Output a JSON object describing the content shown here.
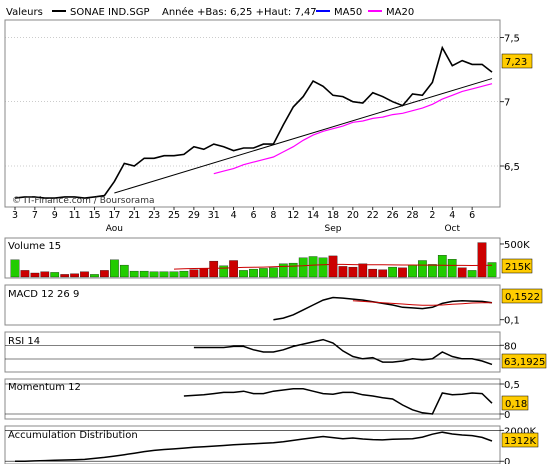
{
  "header": {
    "section_label": "Valeurs",
    "instrument": "SONAE IND.SGP",
    "year_stats": "Année +Bas: 6,25 +Haut: 7,47",
    "ma50_label": "MA50",
    "ma20_label": "MA20"
  },
  "colors": {
    "price": "#000000",
    "trend": "#000000",
    "ma50": "#0000ff",
    "ma20": "#ff00ff",
    "vol_up": "#22cc00",
    "vol_down": "#cc0000",
    "vol_ma": "#cc0000",
    "signal": "#cc0000",
    "badge": "#ffcc00",
    "grid": "#000000"
  },
  "x_axis": {
    "ticks": [
      {
        "label": "3",
        "i": 0
      },
      {
        "label": "7",
        "i": 2
      },
      {
        "label": "9",
        "i": 4
      },
      {
        "label": "11",
        "i": 6
      },
      {
        "label": "15",
        "i": 8
      },
      {
        "label": "17",
        "i": 10
      },
      {
        "label": "21",
        "i": 12
      },
      {
        "label": "23",
        "i": 14
      },
      {
        "label": "25",
        "i": 16
      },
      {
        "label": "29",
        "i": 18
      },
      {
        "label": "31",
        "i": 20
      },
      {
        "label": "4",
        "i": 22
      },
      {
        "label": "6",
        "i": 24
      },
      {
        "label": "8",
        "i": 26
      },
      {
        "label": "12",
        "i": 28
      },
      {
        "label": "14",
        "i": 30
      },
      {
        "label": "18",
        "i": 32
      },
      {
        "label": "20",
        "i": 34
      },
      {
        "label": "22",
        "i": 36
      },
      {
        "label": "26",
        "i": 38
      },
      {
        "label": "28",
        "i": 40
      },
      {
        "label": "2",
        "i": 42
      },
      {
        "label": "4",
        "i": 44
      },
      {
        "label": "6",
        "i": 46
      }
    ],
    "months": [
      {
        "label": "Aou",
        "i": 10
      },
      {
        "label": "Sep",
        "i": 32
      },
      {
        "label": "Oct",
        "i": 44
      }
    ]
  },
  "credit": "© IT-Finance.com / Boursorama",
  "chart_data": [
    {
      "type": "line",
      "panel": "price",
      "y_ticks": [
        {
          "label": "7,5",
          "v": 7.5
        },
        {
          "label": "7",
          "v": 7.0
        },
        {
          "label": "6,5",
          "v": 6.5
        }
      ],
      "ylim": [
        6.22,
        7.62
      ],
      "last_value": "7,23",
      "series": [
        {
          "name": "SONAE IND.SGP",
          "values": [
            6.25,
            6.26,
            6.26,
            6.25,
            6.25,
            6.26,
            6.26,
            6.25,
            6.26,
            6.27,
            6.38,
            6.52,
            6.5,
            6.56,
            6.56,
            6.58,
            6.58,
            6.59,
            6.65,
            6.63,
            6.67,
            6.65,
            6.62,
            6.64,
            6.64,
            6.67,
            6.67,
            6.82,
            6.96,
            7.04,
            7.16,
            7.12,
            7.05,
            7.04,
            7.0,
            6.99,
            7.07,
            7.04,
            7.0,
            6.97,
            7.06,
            7.05,
            7.15,
            7.42,
            7.28,
            7.32,
            7.29,
            7.29,
            7.23
          ]
        },
        {
          "name": "MA20",
          "values": [
            null,
            null,
            null,
            null,
            null,
            null,
            null,
            null,
            null,
            null,
            null,
            null,
            null,
            null,
            null,
            null,
            null,
            null,
            null,
            null,
            6.44,
            6.46,
            6.48,
            6.51,
            6.53,
            6.55,
            6.57,
            6.61,
            6.65,
            6.7,
            6.74,
            6.77,
            6.79,
            6.81,
            6.84,
            6.85,
            6.87,
            6.88,
            6.9,
            6.91,
            6.93,
            6.95,
            6.98,
            7.02,
            7.05,
            7.08,
            7.1,
            7.12,
            7.14
          ]
        }
      ],
      "trendline": {
        "from": [
          10,
          6.29
        ],
        "to": [
          48,
          7.18
        ]
      }
    },
    {
      "type": "bar",
      "panel": "volume",
      "title": "Volume 15",
      "y_ticks": [
        {
          "label": "500K",
          "v": 500
        }
      ],
      "ylim": [
        0,
        560
      ],
      "last_value": "215K",
      "series": [
        {
          "name": "Volume",
          "values": [
            260,
            100,
            60,
            80,
            70,
            40,
            50,
            80,
            40,
            100,
            260,
            180,
            90,
            90,
            80,
            80,
            80,
            90,
            110,
            130,
            240,
            170,
            250,
            100,
            120,
            130,
            140,
            200,
            210,
            290,
            310,
            290,
            320,
            160,
            150,
            200,
            120,
            110,
            150,
            140,
            180,
            250,
            190,
            330,
            270,
            140,
            100,
            520,
            220
          ],
          "up": [
            1,
            0,
            0,
            0,
            1,
            0,
            0,
            0,
            1,
            0,
            1,
            1,
            1,
            1,
            1,
            1,
            1,
            1,
            0,
            0,
            0,
            1,
            0,
            1,
            1,
            1,
            1,
            1,
            1,
            1,
            1,
            1,
            0,
            0,
            0,
            0,
            0,
            0,
            1,
            0,
            1,
            1,
            1,
            1,
            1,
            0,
            1,
            0,
            1
          ]
        },
        {
          "name": "MA15",
          "values": [
            null,
            null,
            null,
            null,
            null,
            null,
            null,
            null,
            null,
            null,
            null,
            null,
            null,
            null,
            null,
            null,
            120,
            125,
            128,
            130,
            132,
            135,
            140,
            145,
            148,
            150,
            155,
            160,
            165,
            170,
            180,
            185,
            190,
            190,
            188,
            186,
            185,
            184,
            183,
            182,
            181,
            180,
            180,
            178,
            176,
            175,
            174,
            176,
            178
          ]
        }
      ]
    },
    {
      "type": "line",
      "panel": "macd",
      "title": "MACD 12 26 9",
      "y_ticks": [
        {
          "label": "0,1",
          "v": 0.1
        }
      ],
      "ylim": [
        0.09,
        0.2
      ],
      "last_value": "0,1522",
      "series": [
        {
          "name": "MACD",
          "values": [
            null,
            null,
            null,
            null,
            null,
            null,
            null,
            null,
            null,
            null,
            null,
            null,
            null,
            null,
            null,
            null,
            null,
            null,
            null,
            null,
            null,
            null,
            null,
            null,
            null,
            null,
            0.1,
            0.105,
            0.115,
            0.13,
            0.145,
            0.16,
            0.168,
            0.166,
            0.163,
            0.16,
            0.155,
            0.15,
            0.145,
            0.138,
            0.136,
            0.134,
            0.138,
            0.15,
            0.156,
            0.158,
            0.157,
            0.156,
            0.152
          ]
        },
        {
          "name": "Signal",
          "values": [
            null,
            null,
            null,
            null,
            null,
            null,
            null,
            null,
            null,
            null,
            null,
            null,
            null,
            null,
            null,
            null,
            null,
            null,
            null,
            null,
            null,
            null,
            null,
            null,
            null,
            null,
            null,
            null,
            null,
            null,
            null,
            null,
            null,
            null,
            0.158,
            0.156,
            0.154,
            0.152,
            0.15,
            0.148,
            0.146,
            0.144,
            0.144,
            0.145,
            0.147,
            0.149,
            0.151,
            0.152,
            0.152
          ]
        }
      ]
    },
    {
      "type": "line",
      "panel": "rsi",
      "title": "RSI 14",
      "y_ticks": [
        {
          "label": "80",
          "v": 80
        }
      ],
      "ylim": [
        58,
        90
      ],
      "last_value": "63,1925",
      "series": [
        {
          "name": "RSI",
          "values": [
            null,
            null,
            null,
            null,
            null,
            null,
            null,
            null,
            null,
            null,
            null,
            null,
            null,
            null,
            null,
            null,
            null,
            null,
            78,
            78,
            78,
            78,
            79,
            79,
            76,
            74,
            74,
            76,
            79,
            81,
            83,
            85,
            82,
            75,
            70,
            68,
            69,
            65,
            65,
            66,
            68,
            67,
            68,
            74,
            70,
            68,
            68,
            66,
            63
          ]
        }
      ]
    },
    {
      "type": "line",
      "panel": "momentum",
      "title": "Momentum 12",
      "y_ticks": [
        {
          "label": "0,5",
          "v": 0.5
        },
        {
          "label": "0",
          "v": 0
        }
      ],
      "ylim": [
        -0.05,
        0.55
      ],
      "last_value": "0,18",
      "series": [
        {
          "name": "Momentum",
          "values": [
            null,
            null,
            null,
            null,
            null,
            null,
            null,
            null,
            null,
            null,
            null,
            null,
            null,
            null,
            null,
            null,
            null,
            0.3,
            0.31,
            0.32,
            0.34,
            0.36,
            0.36,
            0.38,
            0.34,
            0.34,
            0.38,
            0.4,
            0.42,
            0.42,
            0.38,
            0.34,
            0.33,
            0.36,
            0.36,
            0.32,
            0.3,
            0.27,
            0.25,
            0.15,
            0.07,
            0.02,
            0.0,
            0.35,
            0.32,
            0.33,
            0.35,
            0.34,
            0.18
          ]
        }
      ]
    },
    {
      "type": "line",
      "panel": "accdist",
      "title": "Accumulation Distribution",
      "y_ticks": [
        {
          "label": "2000K",
          "v": 2000
        },
        {
          "label": "0",
          "v": 0
        }
      ],
      "ylim": [
        -50,
        2150
      ],
      "last_value": "1312K",
      "series": [
        {
          "name": "Acc/Dist",
          "values": [
            0,
            0,
            20,
            40,
            60,
            80,
            100,
            120,
            180,
            250,
            330,
            420,
            520,
            620,
            700,
            760,
            800,
            850,
            900,
            940,
            980,
            1020,
            1060,
            1100,
            1130,
            1160,
            1200,
            1260,
            1350,
            1440,
            1520,
            1600,
            1530,
            1460,
            1500,
            1440,
            1400,
            1380,
            1420,
            1440,
            1450,
            1560,
            1750,
            1880,
            1760,
            1700,
            1660,
            1540,
            1312
          ]
        }
      ]
    }
  ]
}
